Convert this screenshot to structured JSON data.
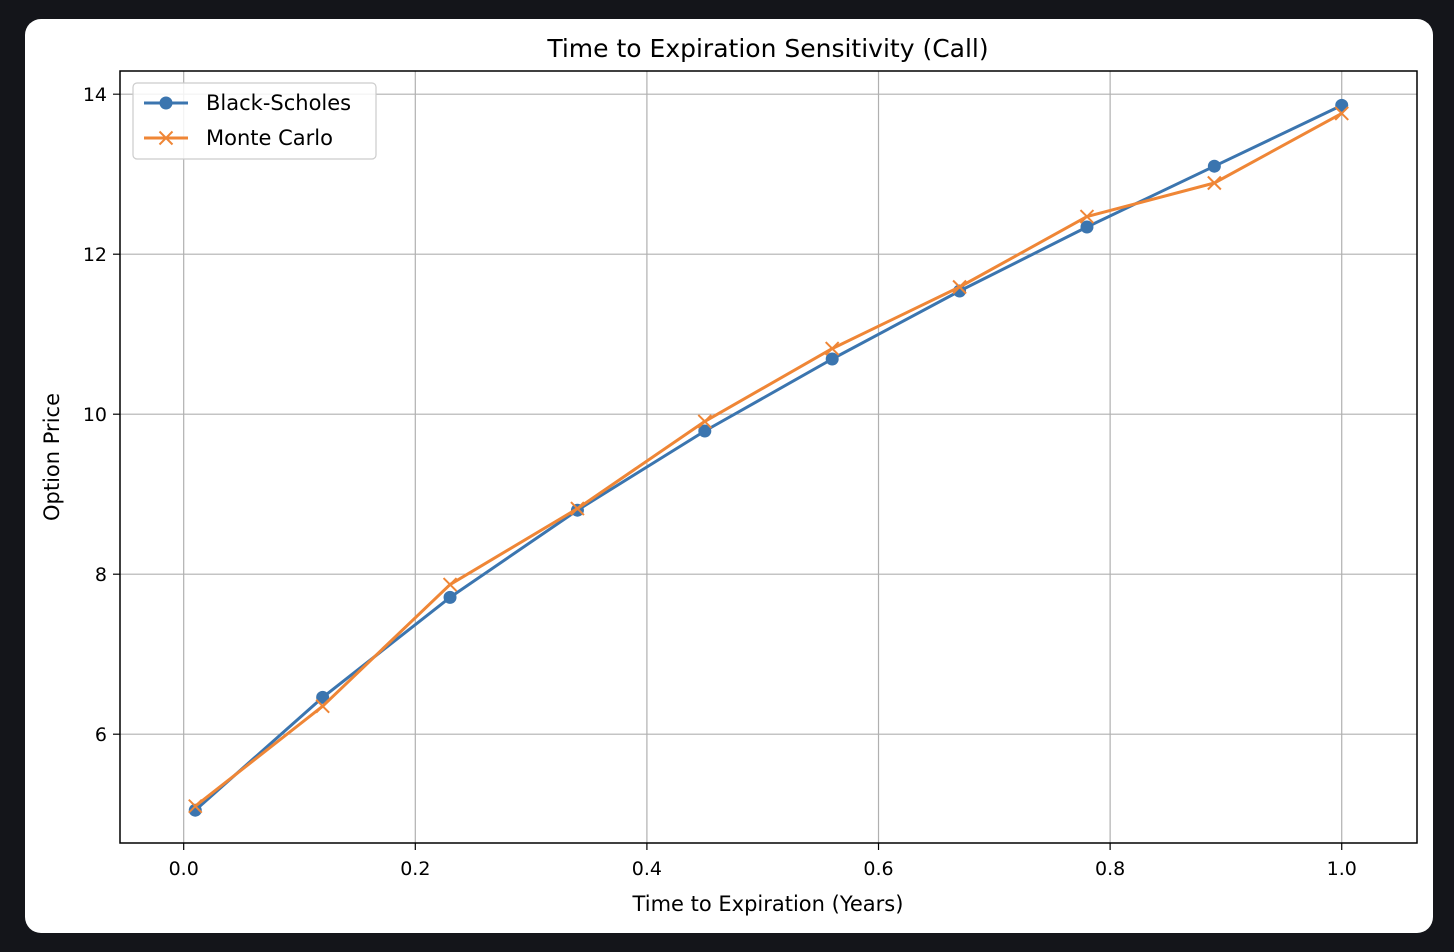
{
  "chart_data": {
    "type": "line",
    "title": "Time to Expiration Sensitivity (Call)",
    "xlabel": "Time to Expiration (Years)",
    "ylabel": "Option Price",
    "x": [
      0.01,
      0.12,
      0.23,
      0.34,
      0.45,
      0.56,
      0.67,
      0.78,
      0.89,
      1.0
    ],
    "series": [
      {
        "name": "Black-Scholes",
        "marker": "circle",
        "color": "#3b75af",
        "values": [
          5.05,
          6.46,
          7.71,
          8.8,
          9.79,
          10.69,
          11.54,
          12.34,
          13.1,
          13.86
        ]
      },
      {
        "name": "Monte Carlo",
        "marker": "x",
        "color": "#ef8636",
        "values": [
          5.1,
          6.35,
          7.87,
          8.82,
          9.91,
          10.82,
          11.59,
          12.47,
          12.89,
          13.76
        ]
      }
    ],
    "xlim": [
      -0.055,
      1.065
    ],
    "ylim": [
      4.64,
      14.29
    ],
    "xticks": [
      "0.0",
      "0.2",
      "0.4",
      "0.6",
      "0.8",
      "1.0"
    ],
    "yticks": [
      "6",
      "8",
      "10",
      "12",
      "14"
    ],
    "grid": true,
    "legend_position": "top-left"
  }
}
